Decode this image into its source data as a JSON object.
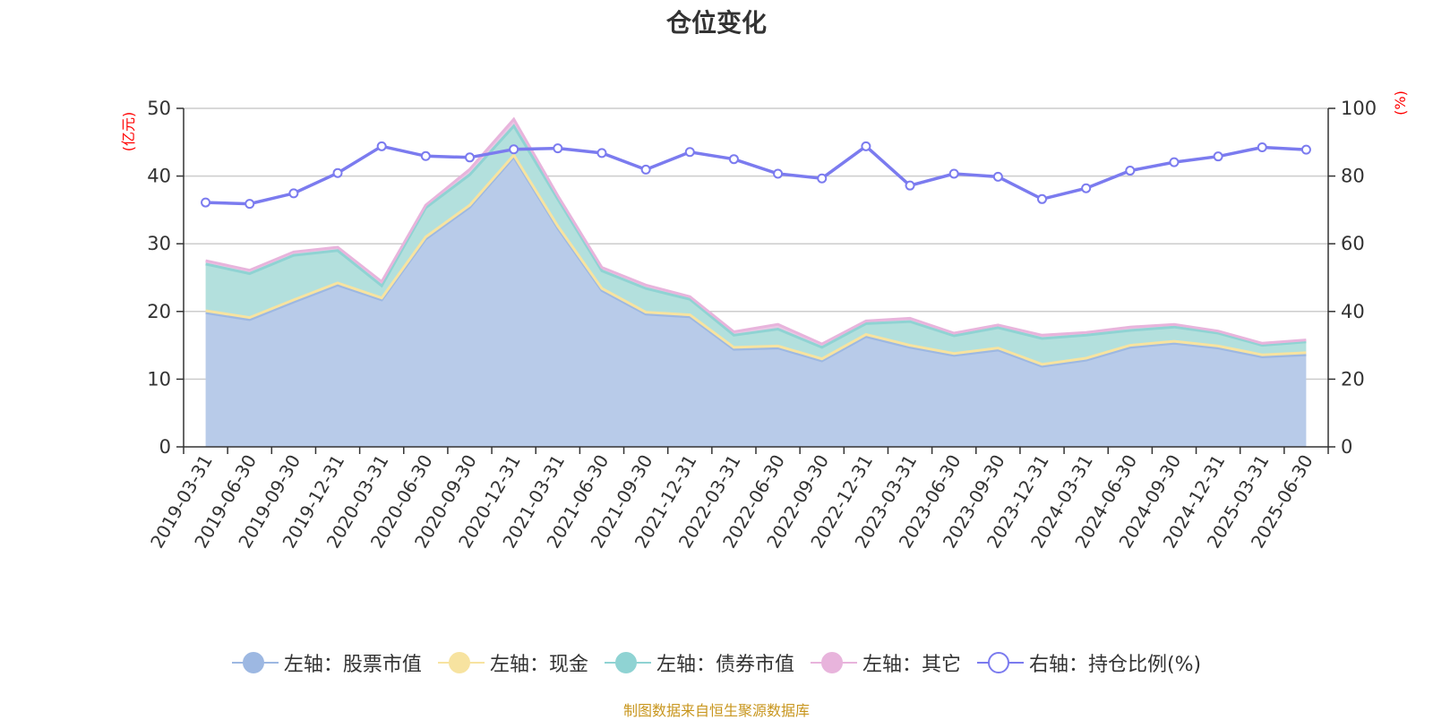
{
  "title": "仓位变化",
  "source": "制图数据来自恒生聚源数据库",
  "chart_data": {
    "type": "area",
    "title": "仓位变化",
    "categories": [
      "2019-03-31",
      "2019-06-30",
      "2019-09-30",
      "2019-12-31",
      "2020-03-31",
      "2020-06-30",
      "2020-09-30",
      "2020-12-31",
      "2021-03-31",
      "2021-06-30",
      "2021-09-30",
      "2021-12-31",
      "2022-03-31",
      "2022-06-30",
      "2022-09-30",
      "2022-12-31",
      "2023-03-31",
      "2023-06-30",
      "2023-09-30",
      "2023-12-31",
      "2024-03-31",
      "2024-06-30",
      "2024-09-30",
      "2024-12-31",
      "2025-03-31",
      "2025-06-30"
    ],
    "left_axis": {
      "unit": "(亿元)",
      "ylim": [
        0,
        50
      ],
      "ticks": [
        "0",
        "10",
        "20",
        "30",
        "40",
        "50"
      ]
    },
    "right_axis": {
      "unit": "(%)",
      "ylim": [
        0,
        100
      ],
      "ticks": [
        "0",
        "20",
        "40",
        "60",
        "80",
        "100"
      ]
    },
    "grid": true,
    "legend_position": "bottom",
    "series": [
      {
        "name": "左轴：股票市值",
        "axis": "left",
        "kind": "stacked-area",
        "color": "#9db8e2",
        "values": [
          19.8,
          18.8,
          21.4,
          23.9,
          21.7,
          30.7,
          35.4,
          42.8,
          32.3,
          23.1,
          19.6,
          19.2,
          14.4,
          14.6,
          12.7,
          16.3,
          14.7,
          13.5,
          14.3,
          11.9,
          12.8,
          14.7,
          15.3,
          14.6,
          13.3,
          13.6
        ]
      },
      {
        "name": "左轴：现金",
        "axis": "left",
        "kind": "stacked-area",
        "color": "#f7e3a0",
        "values": [
          0.3,
          0.3,
          0.3,
          0.3,
          0.3,
          0.3,
          0.3,
          0.3,
          0.3,
          0.3,
          0.3,
          0.3,
          0.3,
          0.3,
          0.3,
          0.3,
          0.3,
          0.3,
          0.3,
          0.3,
          0.3,
          0.3,
          0.3,
          0.3,
          0.3,
          0.3
        ]
      },
      {
        "name": "左轴：债券市值",
        "axis": "left",
        "kind": "stacked-area",
        "color": "#8fd3d3",
        "values": [
          6.9,
          6.5,
          6.6,
          4.8,
          1.8,
          4.3,
          4.5,
          4.3,
          4.0,
          2.6,
          3.5,
          2.3,
          1.8,
          2.5,
          1.7,
          1.6,
          3.5,
          2.6,
          3.0,
          3.8,
          3.4,
          2.2,
          2.1,
          1.9,
          1.4,
          1.6
        ]
      },
      {
        "name": "左轴：其它",
        "axis": "left",
        "kind": "stacked-area",
        "color": "#e8b4dc",
        "values": [
          0.5,
          0.5,
          0.5,
          0.5,
          0.6,
          0.4,
          0.8,
          1.0,
          0.5,
          0.5,
          0.5,
          0.4,
          0.5,
          0.7,
          0.5,
          0.4,
          0.5,
          0.4,
          0.4,
          0.5,
          0.4,
          0.5,
          0.4,
          0.3,
          0.3,
          0.3
        ]
      },
      {
        "name": "右轴：持仓比例(%)",
        "axis": "right",
        "kind": "line",
        "color": "#7b7bef",
        "values": [
          72.2,
          71.8,
          74.9,
          80.9,
          88.8,
          85.9,
          85.5,
          87.9,
          88.2,
          86.8,
          81.9,
          87.1,
          85.0,
          80.7,
          79.3,
          88.8,
          77.2,
          80.7,
          79.8,
          73.2,
          76.4,
          81.6,
          84.1,
          85.8,
          88.5,
          87.8
        ]
      }
    ]
  },
  "legend": [
    {
      "label": "左轴：股票市值",
      "line": "#9db8e2",
      "fill": "#9db8e2",
      "border": "#9db8e2"
    },
    {
      "label": "左轴：现金",
      "line": "#f7e3a0",
      "fill": "#f7e3a0",
      "border": "#f7e3a0"
    },
    {
      "label": "左轴：债券市值",
      "line": "#8fd3d3",
      "fill": "#8fd3d3",
      "border": "#8fd3d3"
    },
    {
      "label": "左轴：其它",
      "line": "#e8b4dc",
      "fill": "#e8b4dc",
      "border": "#e8b4dc"
    },
    {
      "label": "右轴：持仓比例(%)",
      "line": "#7b7bef",
      "fill": "#ffffff",
      "border": "#7b7bef"
    }
  ]
}
